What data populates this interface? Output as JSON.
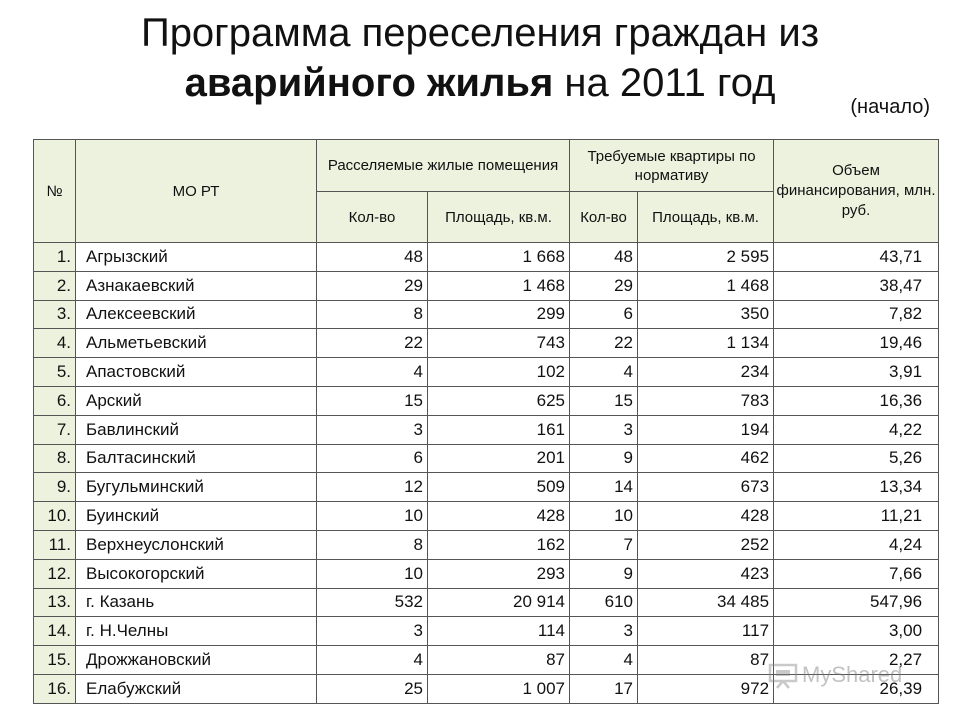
{
  "title": {
    "line1": "Программа переселения граждан из",
    "line2_bold": "аварийного жилья",
    "line2_rest": " на 2011 год"
  },
  "subnote": "(начало)",
  "table": {
    "headers": {
      "num": "№",
      "mo": "МО РТ",
      "resettled_group": "Расселяемые жилые помещения",
      "required_group": "Требуемые квартиры по нормативу",
      "financing": "Объем финансирования, млн. руб.",
      "count": "Кол-во",
      "area": "Площадь, кв.м."
    },
    "rows": [
      {
        "n": "1.",
        "name": "Агрызский",
        "res_count": "48",
        "res_area": "1 668",
        "req_count": "48",
        "req_area": "2 595",
        "fin": "43,71"
      },
      {
        "n": "2.",
        "name": "Азнакаевский",
        "res_count": "29",
        "res_area": "1 468",
        "req_count": "29",
        "req_area": "1 468",
        "fin": "38,47"
      },
      {
        "n": "3.",
        "name": "Алексеевский",
        "res_count": "8",
        "res_area": "299",
        "req_count": "6",
        "req_area": "350",
        "fin": "7,82"
      },
      {
        "n": "4.",
        "name": "Альметьевский",
        "res_count": "22",
        "res_area": "743",
        "req_count": "22",
        "req_area": "1 134",
        "fin": "19,46"
      },
      {
        "n": "5.",
        "name": "Апастовский",
        "res_count": "4",
        "res_area": "102",
        "req_count": "4",
        "req_area": "234",
        "fin": "3,91"
      },
      {
        "n": "6.",
        "name": "Арский",
        "res_count": "15",
        "res_area": "625",
        "req_count": "15",
        "req_area": "783",
        "fin": "16,36"
      },
      {
        "n": "7.",
        "name": "Бавлинский",
        "res_count": "3",
        "res_area": "161",
        "req_count": "3",
        "req_area": "194",
        "fin": "4,22"
      },
      {
        "n": "8.",
        "name": "Балтасинский",
        "res_count": "6",
        "res_area": "201",
        "req_count": "9",
        "req_area": "462",
        "fin": "5,26"
      },
      {
        "n": "9.",
        "name": "Бугульминский",
        "res_count": "12",
        "res_area": "509",
        "req_count": "14",
        "req_area": "673",
        "fin": "13,34"
      },
      {
        "n": "10.",
        "name": "Буинский",
        "res_count": "10",
        "res_area": "428",
        "req_count": "10",
        "req_area": "428",
        "fin": "11,21"
      },
      {
        "n": "11.",
        "name": "Верхнеуслонский",
        "res_count": "8",
        "res_area": "162",
        "req_count": "7",
        "req_area": "252",
        "fin": "4,24"
      },
      {
        "n": "12.",
        "name": "Высокогорский",
        "res_count": "10",
        "res_area": "293",
        "req_count": "9",
        "req_area": "423",
        "fin": "7,66"
      },
      {
        "n": "13.",
        "name": "г. Казань",
        "res_count": "532",
        "res_area": "20 914",
        "req_count": "610",
        "req_area": "34 485",
        "fin": "547,96"
      },
      {
        "n": "14.",
        "name": "г. Н.Челны",
        "res_count": "3",
        "res_area": "114",
        "req_count": "3",
        "req_area": "117",
        "fin": "3,00"
      },
      {
        "n": "15.",
        "name": "Дрожжановский",
        "res_count": "4",
        "res_area": "87",
        "req_count": "4",
        "req_area": "87",
        "fin": "2,27"
      },
      {
        "n": "16.",
        "name": "Елабужский",
        "res_count": "25",
        "res_area": "1 007",
        "req_count": "17",
        "req_area": "972",
        "fin": "26,39"
      }
    ]
  },
  "watermark": {
    "text": "MyShared",
    "icon": "presentation-board-icon"
  }
}
